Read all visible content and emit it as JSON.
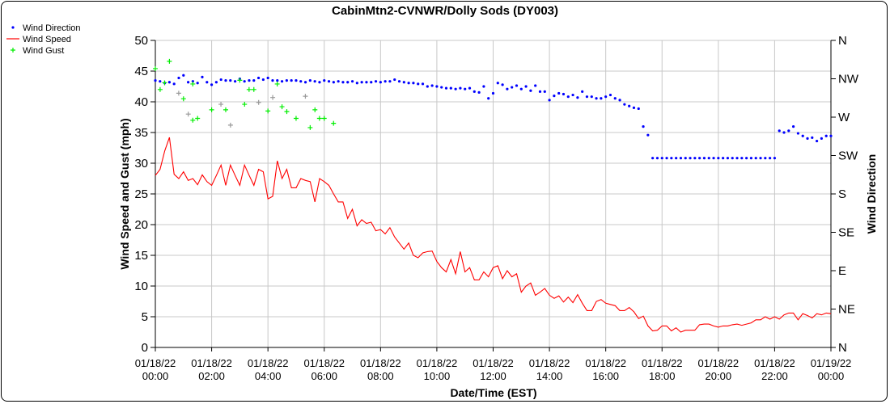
{
  "chart_data": {
    "type": "line",
    "title": "CabinMtn2-CVNWR/Dolly Sods (DY003)",
    "xlabel": "Date/Time (EST)",
    "ylabel": "Wind Speed and Gust (mph)",
    "y2label": "Wind Direction",
    "xlim_hours": [
      0,
      24
    ],
    "ylim": [
      0,
      50
    ],
    "y2lim_degrees": [
      0,
      360
    ],
    "grid": true,
    "legend_position": "top-left",
    "x_ticks": [
      {
        "hour": 0,
        "date": "01/18/22",
        "time": "00:00"
      },
      {
        "hour": 2,
        "date": "01/18/22",
        "time": "02:00"
      },
      {
        "hour": 4,
        "date": "01/18/22",
        "time": "04:00"
      },
      {
        "hour": 6,
        "date": "01/18/22",
        "time": "06:00"
      },
      {
        "hour": 8,
        "date": "01/18/22",
        "time": "08:00"
      },
      {
        "hour": 10,
        "date": "01/18/22",
        "time": "10:00"
      },
      {
        "hour": 12,
        "date": "01/18/22",
        "time": "12:00"
      },
      {
        "hour": 14,
        "date": "01/18/22",
        "time": "14:00"
      },
      {
        "hour": 16,
        "date": "01/18/22",
        "time": "16:00"
      },
      {
        "hour": 18,
        "date": "01/18/22",
        "time": "18:00"
      },
      {
        "hour": 20,
        "date": "01/18/22",
        "time": "20:00"
      },
      {
        "hour": 22,
        "date": "01/18/22",
        "time": "22:00"
      },
      {
        "hour": 24,
        "date": "01/19/22",
        "time": "00:00"
      }
    ],
    "y_ticks": [
      "0",
      "5",
      "10",
      "15",
      "20",
      "25",
      "30",
      "35",
      "40",
      "45",
      "50"
    ],
    "y2_ticks": [
      "N",
      "NE",
      "E",
      "SE",
      "S",
      "SW",
      "W",
      "NW",
      "N"
    ],
    "legend": [
      {
        "name": "Wind Direction",
        "color": "#0000ff",
        "symbol": "dot"
      },
      {
        "name": "Wind Speed",
        "color": "#ff0000",
        "symbol": "line"
      },
      {
        "name": "Wind Gust",
        "color": "#00ee00",
        "symbol": "plus"
      }
    ],
    "interval_minutes": 10,
    "wind_speed_mph": [
      28,
      29,
      32,
      34.2,
      28.2,
      27.5,
      28.6,
      27.2,
      27.5,
      26.5,
      28.1,
      27,
      26.4,
      28,
      29.7,
      26.4,
      29.7,
      28,
      26.4,
      29.7,
      28,
      26.4,
      29,
      28.6,
      24.2,
      24.6,
      30.4,
      27.5,
      29,
      26,
      26,
      27.5,
      27.2,
      27,
      23.7,
      27.5,
      27,
      26.4,
      25,
      23.7,
      23.7,
      21,
      22.5,
      19.8,
      20.8,
      20.2,
      20.4,
      19,
      19.2,
      18.5,
      19.5,
      18,
      17,
      16,
      17,
      15,
      14.6,
      15.4,
      15.6,
      15.7,
      14,
      13,
      12.3,
      14.3,
      12,
      15.6,
      12.3,
      13,
      11,
      11,
      12.3,
      11.5,
      13,
      13.3,
      11.2,
      12.5,
      11.5,
      12,
      9,
      10,
      10.5,
      8.5,
      9,
      9.6,
      8.5,
      8,
      8.4,
      7.4,
      8.2,
      7.3,
      8.6,
      7.2,
      6,
      6,
      7.5,
      7.8,
      7.2,
      7,
      6.8,
      6,
      6,
      6.5,
      5.8,
      4.7,
      5.1,
      3.5,
      2.7,
      2.8,
      3.5,
      3.5,
      2.7,
      3.2,
      2.5,
      2.8,
      2.8,
      2.8,
      3.7,
      3.8,
      3.8,
      3.5,
      3.3,
      3.5,
      3.5,
      3.7,
      3.8,
      3.6,
      3.8,
      4,
      4.5,
      4.5,
      5,
      4.6,
      5,
      4.6,
      5.3,
      5.6,
      5.6,
      4.5,
      5.5,
      5.2,
      4.8,
      5.5,
      5.3,
      5.6,
      5.5
    ],
    "wind_direction_deg": [
      313,
      312,
      310,
      311,
      309,
      316,
      319,
      311,
      312,
      310,
      317,
      311,
      308,
      311,
      314,
      313,
      313,
      312,
      315,
      312,
      313,
      313,
      316,
      314,
      316,
      313,
      313,
      312,
      313,
      313,
      313,
      312,
      311,
      313,
      312,
      311,
      313,
      312,
      311,
      312,
      311,
      311,
      312,
      310,
      311,
      311,
      311,
      312,
      311,
      312,
      312,
      314,
      312,
      311,
      310,
      310,
      309,
      309,
      306,
      307,
      306,
      305,
      304,
      304,
      303,
      304,
      303,
      304,
      300,
      299,
      306,
      292,
      298,
      310,
      308,
      303,
      305,
      307,
      303,
      306,
      301,
      307,
      300,
      300,
      290,
      295,
      298,
      297,
      294,
      296,
      293,
      300,
      294,
      294,
      292,
      292,
      294,
      296,
      292,
      290,
      285,
      283,
      281,
      280,
      259,
      249,
      222,
      222,
      222,
      222,
      222,
      222,
      222,
      222,
      222,
      222,
      222,
      222,
      222,
      222,
      222,
      222,
      222,
      222,
      222,
      222,
      222,
      222,
      222,
      222,
      222,
      222,
      222,
      254,
      252,
      254,
      259,
      251,
      248,
      245,
      246,
      242,
      245,
      248,
      248
    ],
    "wind_gust_mph": [
      {
        "hour": 0.0,
        "value": 45.4,
        "flag": "green"
      },
      {
        "hour": 0.17,
        "value": 42.0,
        "flag": "green"
      },
      {
        "hour": 0.33,
        "value": 43.1,
        "flag": "green"
      },
      {
        "hour": 0.5,
        "value": 46.6,
        "flag": "green"
      },
      {
        "hour": 0.83,
        "value": 41.4,
        "flag": "gray"
      },
      {
        "hour": 1.0,
        "value": 40.5,
        "flag": "green"
      },
      {
        "hour": 1.17,
        "value": 38.0,
        "flag": "gray"
      },
      {
        "hour": 1.33,
        "value": 37.0,
        "flag": "green"
      },
      {
        "hour": 1.5,
        "value": 37.3,
        "flag": "green"
      },
      {
        "hour": 1.33,
        "value": 42.9,
        "flag": "green"
      },
      {
        "hour": 2.0,
        "value": 38.7,
        "flag": "green"
      },
      {
        "hour": 2.33,
        "value": 39.6,
        "flag": "gray"
      },
      {
        "hour": 2.5,
        "value": 38.7,
        "flag": "green"
      },
      {
        "hour": 2.67,
        "value": 36.2,
        "flag": "gray"
      },
      {
        "hour": 3.0,
        "value": 43.5,
        "flag": "green"
      },
      {
        "hour": 3.17,
        "value": 39.6,
        "flag": "green"
      },
      {
        "hour": 3.33,
        "value": 42.0,
        "flag": "green"
      },
      {
        "hour": 3.5,
        "value": 42.0,
        "flag": "green"
      },
      {
        "hour": 3.67,
        "value": 39.9,
        "flag": "gray"
      },
      {
        "hour": 4.0,
        "value": 38.5,
        "flag": "green"
      },
      {
        "hour": 4.17,
        "value": 40.7,
        "flag": "gray"
      },
      {
        "hour": 4.33,
        "value": 42.9,
        "flag": "green"
      },
      {
        "hour": 4.5,
        "value": 39.2,
        "flag": "green"
      },
      {
        "hour": 4.67,
        "value": 38.4,
        "flag": "green"
      },
      {
        "hour": 5.0,
        "value": 37.3,
        "flag": "green"
      },
      {
        "hour": 5.33,
        "value": 40.9,
        "flag": "gray"
      },
      {
        "hour": 5.5,
        "value": 35.8,
        "flag": "green"
      },
      {
        "hour": 5.67,
        "value": 38.7,
        "flag": "green"
      },
      {
        "hour": 5.83,
        "value": 37.3,
        "flag": "green"
      },
      {
        "hour": 6.0,
        "value": 37.3,
        "flag": "green"
      },
      {
        "hour": 6.33,
        "value": 36.5,
        "flag": "green"
      }
    ],
    "colors": {
      "speed": "#ff0000",
      "direction": "#0000ff",
      "gust": "#00ee00",
      "gust_alt": "#999999",
      "grid": "#c8c8c8"
    }
  }
}
